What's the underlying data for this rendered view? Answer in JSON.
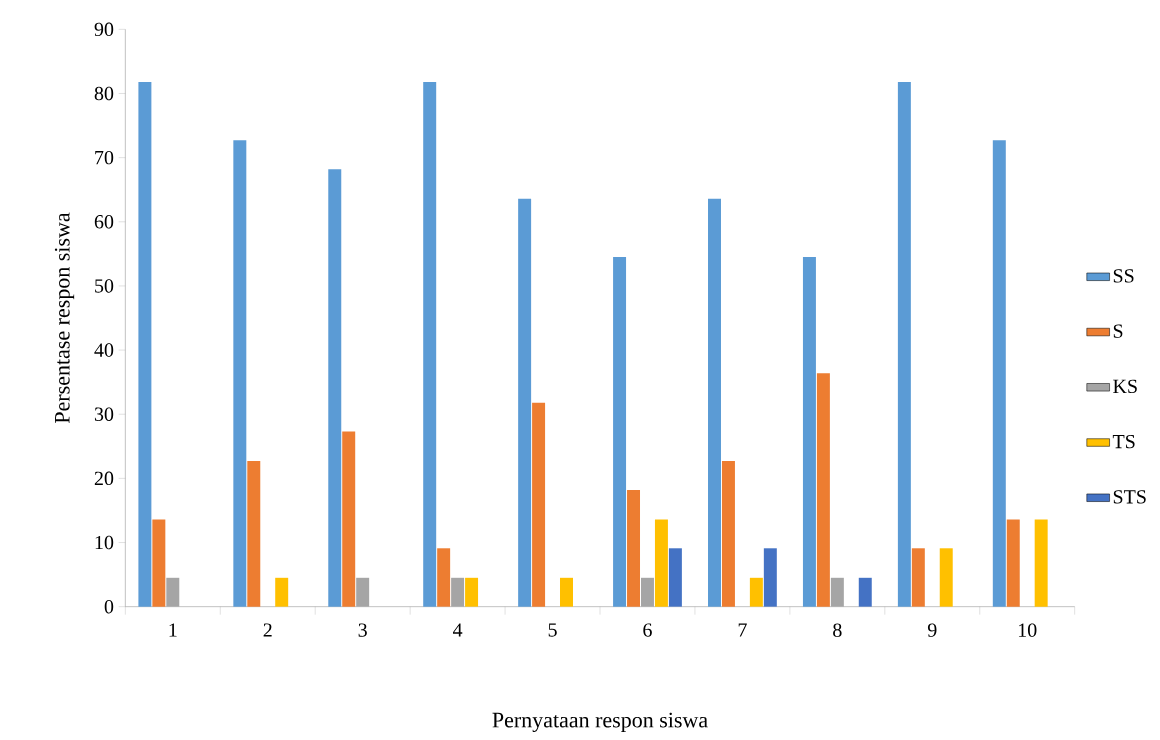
{
  "chart_data": {
    "type": "bar",
    "xlabel": "Pernyataan respon siswa",
    "ylabel": "Persentase  respon siswa",
    "categories": [
      "1",
      "2",
      "3",
      "4",
      "5",
      "6",
      "7",
      "8",
      "9",
      "10"
    ],
    "series": [
      {
        "name": "SS",
        "color": "#5b9bd5",
        "values": [
          81.8,
          72.7,
          68.2,
          81.8,
          63.6,
          54.5,
          63.6,
          54.5,
          81.8,
          72.7
        ]
      },
      {
        "name": "S",
        "color": "#ed7d31",
        "values": [
          13.6,
          22.7,
          27.3,
          9.1,
          31.8,
          18.2,
          22.7,
          36.4,
          9.1,
          13.6
        ]
      },
      {
        "name": "KS",
        "color": "#a5a5a5",
        "values": [
          4.5,
          0,
          4.5,
          4.5,
          0,
          4.5,
          0,
          4.5,
          0,
          0
        ]
      },
      {
        "name": "TS",
        "color": "#ffc000",
        "values": [
          0,
          4.5,
          0,
          4.5,
          4.5,
          13.6,
          4.5,
          0,
          9.1,
          13.6
        ]
      },
      {
        "name": "STS",
        "color": "#4472c4",
        "values": [
          0,
          0,
          0,
          0,
          0,
          9.1,
          9.1,
          4.5,
          0,
          0
        ]
      }
    ],
    "ylim": [
      0,
      90
    ],
    "yticks": [
      0,
      10,
      20,
      30,
      40,
      50,
      60,
      70,
      80,
      90
    ],
    "grid": false,
    "legend": "right"
  }
}
